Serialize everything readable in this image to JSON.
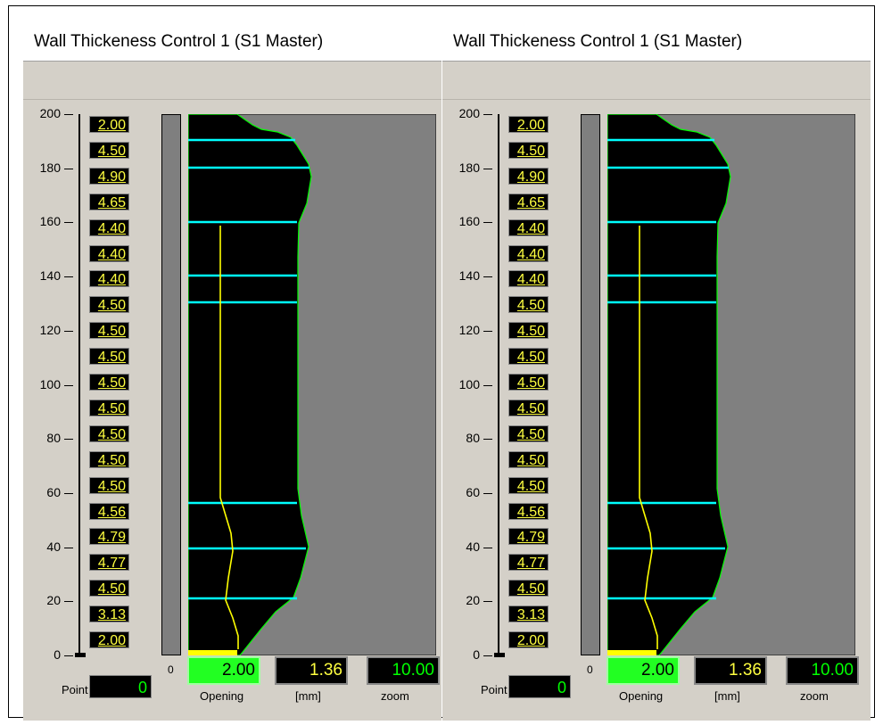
{
  "title": "Wall Thickeness Control 1 (S1 Master)",
  "axis": {
    "ticks": [
      "200",
      "180",
      "160",
      "140",
      "120",
      "100",
      "80",
      "60",
      "40",
      "20",
      "0"
    ]
  },
  "point_values": [
    "2.00",
    "4.50",
    "4.90",
    "4.65",
    "4.40",
    "4.40",
    "4.40",
    "4.50",
    "4.50",
    "4.50",
    "4.50",
    "4.50",
    "4.50",
    "4.50",
    "4.50",
    "4.56",
    "4.79",
    "4.77",
    "4.50",
    "3.13",
    "2.00"
  ],
  "zero_label": "0",
  "point": {
    "label": "Point",
    "value": "0"
  },
  "opening": {
    "value": "2.00",
    "label": "Opening"
  },
  "mm": {
    "value": "1.36",
    "label": "[mm]"
  },
  "zoom": {
    "value": "10.00",
    "label": "zoom"
  },
  "colors": {
    "panel_bg": "#d4d0c8",
    "plot_bg": "#808080",
    "profile_fill": "#000000",
    "cyan_lines": "#00ffff",
    "yellow_curve": "#ffff00",
    "green_edge": "#00ff00"
  }
}
